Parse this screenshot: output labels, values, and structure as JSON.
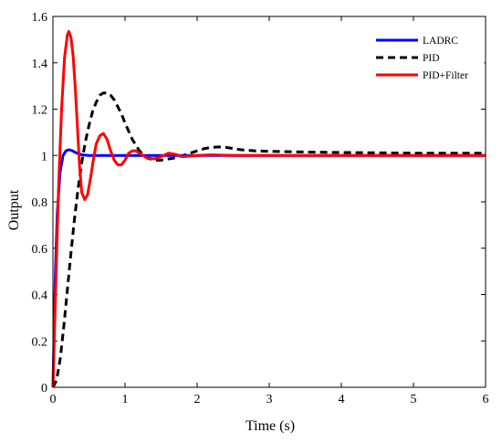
{
  "chart_data": {
    "type": "line",
    "title": "",
    "xlabel": "Time (s)",
    "ylabel": "Output",
    "xlim": [
      0,
      6
    ],
    "ylim": [
      0,
      1.6
    ],
    "x_ticks": [
      0,
      1,
      2,
      3,
      4,
      5,
      6
    ],
    "y_ticks": [
      0,
      0.2,
      0.4,
      0.6,
      0.8,
      1,
      1.2,
      1.4,
      1.6
    ],
    "grid": false,
    "legend_position": "top-right",
    "series": [
      {
        "name": "LADRC",
        "color": "#0000ff",
        "style": "solid",
        "x": [
          0,
          0.03,
          0.06,
          0.1,
          0.14,
          0.18,
          0.22,
          0.26,
          0.3,
          0.35,
          0.4,
          0.5,
          0.6,
          0.8,
          1.0,
          1.5,
          2.0,
          3.0,
          4.0,
          5.0,
          6.0
        ],
        "y": [
          0,
          0.45,
          0.75,
          0.93,
          1.0,
          1.02,
          1.025,
          1.022,
          1.015,
          1.008,
          1.003,
          1.0,
          1.0,
          1.0,
          1.0,
          1.0,
          1.0,
          1.0,
          1.0,
          1.0,
          1.0
        ]
      },
      {
        "name": "PID",
        "color": "#000000",
        "style": "dashed",
        "x": [
          0,
          0.05,
          0.1,
          0.15,
          0.2,
          0.25,
          0.3,
          0.35,
          0.4,
          0.45,
          0.5,
          0.55,
          0.6,
          0.65,
          0.7,
          0.75,
          0.8,
          0.85,
          0.9,
          0.95,
          1.0,
          1.1,
          1.2,
          1.3,
          1.4,
          1.5,
          1.6,
          1.7,
          1.8,
          1.9,
          2.0,
          2.1,
          2.2,
          2.3,
          2.4,
          2.5,
          2.6,
          2.8,
          3.0,
          3.5,
          4.0,
          5.0,
          6.0
        ],
        "y": [
          0,
          0.03,
          0.12,
          0.26,
          0.42,
          0.58,
          0.73,
          0.86,
          0.97,
          1.06,
          1.13,
          1.19,
          1.23,
          1.26,
          1.27,
          1.27,
          1.26,
          1.24,
          1.21,
          1.18,
          1.14,
          1.07,
          1.02,
          0.99,
          0.98,
          0.98,
          0.985,
          0.99,
          1.0,
          1.01,
          1.02,
          1.03,
          1.035,
          1.037,
          1.035,
          1.03,
          1.025,
          1.02,
          1.018,
          1.015,
          1.013,
          1.01,
          1.01
        ]
      },
      {
        "name": "PID+Filter",
        "color": "#ff0000",
        "style": "solid",
        "x": [
          0,
          0.04,
          0.08,
          0.12,
          0.16,
          0.2,
          0.22,
          0.25,
          0.28,
          0.31,
          0.34,
          0.37,
          0.4,
          0.44,
          0.48,
          0.52,
          0.56,
          0.6,
          0.65,
          0.7,
          0.75,
          0.8,
          0.85,
          0.9,
          0.95,
          1.0,
          1.05,
          1.1,
          1.15,
          1.2,
          1.3,
          1.4,
          1.5,
          1.6,
          1.7,
          1.8,
          2.0,
          2.2,
          2.5,
          3.0,
          4.0,
          5.0,
          6.0
        ],
        "y": [
          0,
          0.45,
          0.88,
          1.2,
          1.42,
          1.52,
          1.535,
          1.51,
          1.43,
          1.29,
          1.12,
          0.95,
          0.84,
          0.81,
          0.83,
          0.9,
          0.98,
          1.05,
          1.085,
          1.095,
          1.07,
          1.02,
          0.98,
          0.96,
          0.96,
          0.98,
          1.01,
          1.02,
          1.02,
          1.01,
          0.99,
          0.985,
          0.995,
          1.01,
          1.005,
          0.995,
          1.0,
          1.003,
          1.0,
          1.0,
          1.0,
          1.0,
          1.0
        ]
      }
    ]
  }
}
